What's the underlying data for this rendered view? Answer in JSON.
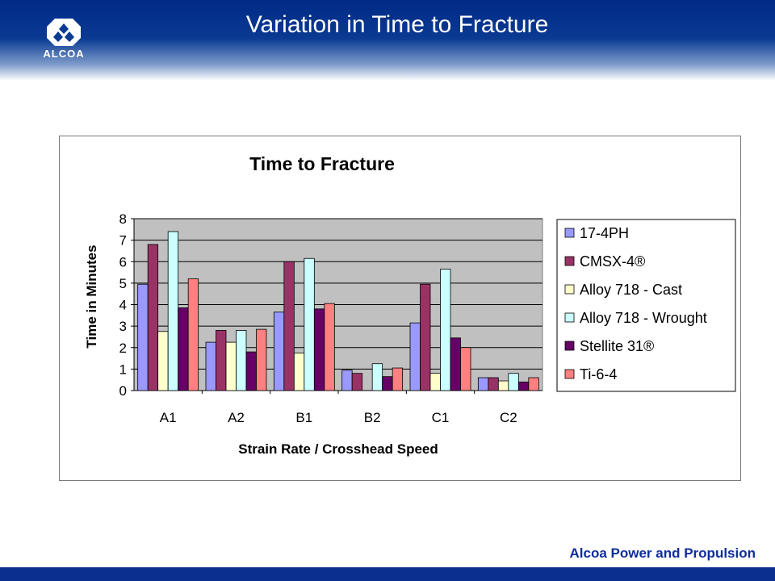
{
  "slide": {
    "title": "Variation in Time to Fracture",
    "logo_text": "ALCOA",
    "footer": "Alcoa Power and Propulsion"
  },
  "chart_data": {
    "type": "bar",
    "title": "Time to Fracture",
    "xlabel": "Strain Rate / Crosshead Speed",
    "ylabel": "Time in Minutes",
    "ylim": [
      0,
      8
    ],
    "yticks": [
      0,
      1,
      2,
      3,
      4,
      5,
      6,
      7,
      8
    ],
    "grid": true,
    "legend": "right",
    "categories": [
      "A1",
      "A2",
      "B1",
      "B2",
      "C1",
      "C2"
    ],
    "series": [
      {
        "name": "17-4PH",
        "color": "#9999ff",
        "values": [
          4.95,
          2.25,
          3.65,
          0.95,
          3.15,
          0.6
        ]
      },
      {
        "name": "CMSX-4®",
        "color": "#993366",
        "values": [
          6.8,
          2.8,
          6.0,
          0.8,
          4.95,
          0.6
        ]
      },
      {
        "name": "Alloy 718 - Cast",
        "color": "#ffffcc",
        "values": [
          2.75,
          2.25,
          1.75,
          0.0,
          0.8,
          0.45
        ]
      },
      {
        "name": "Alloy 718 - Wrought",
        "color": "#ccffff",
        "values": [
          7.4,
          2.8,
          6.15,
          1.25,
          5.65,
          0.8
        ]
      },
      {
        "name": "Stellite 31®",
        "color": "#660066",
        "values": [
          3.85,
          1.8,
          3.8,
          0.65,
          2.45,
          0.4
        ]
      },
      {
        "name": "Ti-6-4",
        "color": "#ff8080",
        "values": [
          5.2,
          2.85,
          4.05,
          1.05,
          2.0,
          0.6
        ]
      }
    ]
  }
}
